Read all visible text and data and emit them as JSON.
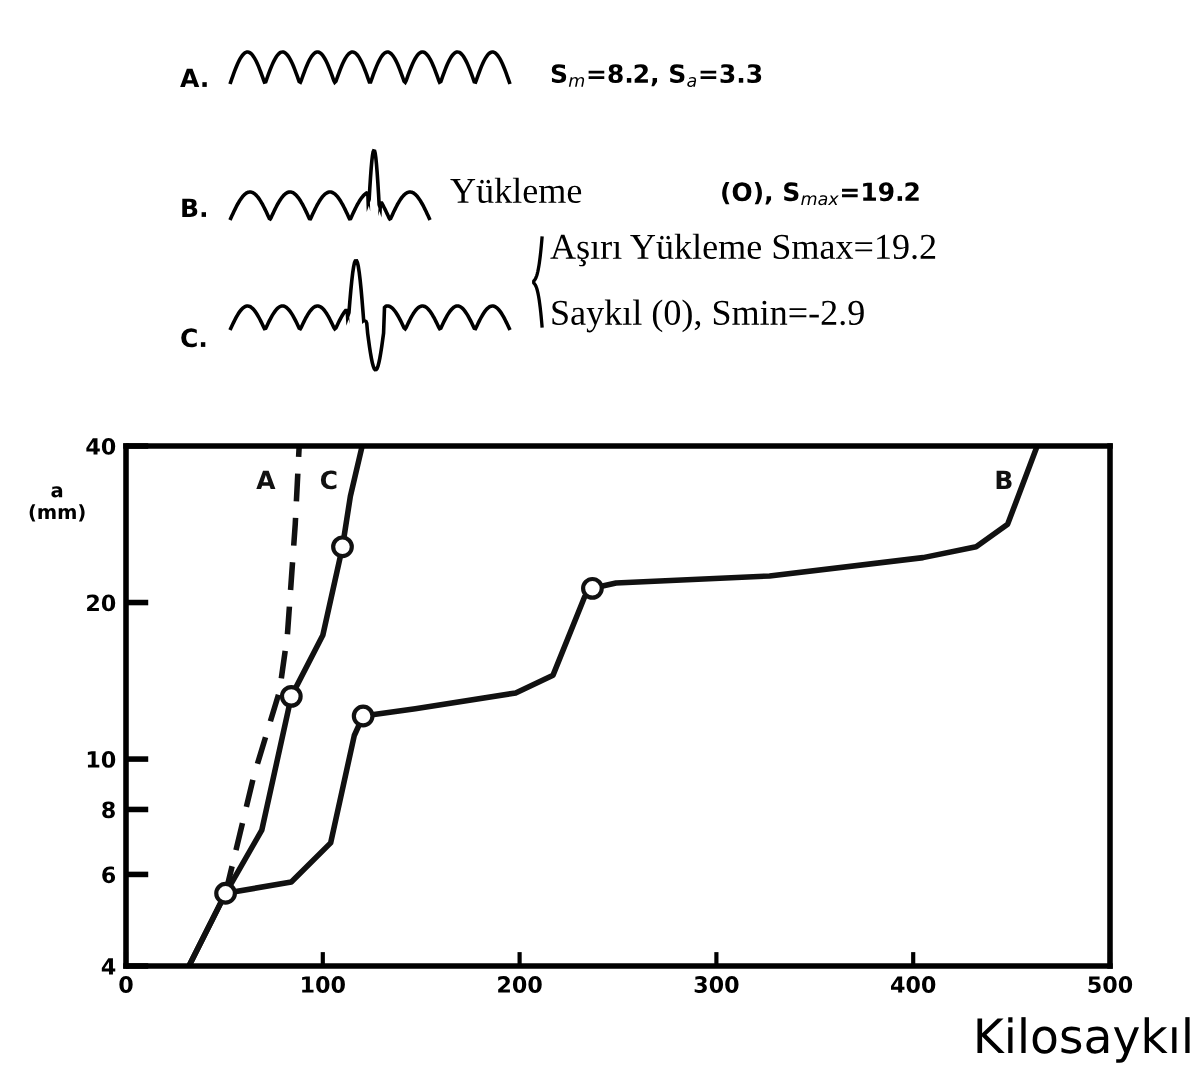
{
  "chart_data": {
    "type": "line",
    "xlabel": "Kilosaykıl",
    "ylabel": "a\n(mm)",
    "x": [
      32,
      50.6,
      84,
      104,
      116,
      120.5,
      147,
      198,
      217,
      233,
      237,
      249,
      327,
      405,
      432,
      448,
      463
    ],
    "series": [
      {
        "name": "B",
        "color": "#111111",
        "line_style": "solid",
        "values": [
          4,
          5.52,
          5.8,
          6.9,
          11.1,
          12.1,
          12.5,
          13.4,
          14.5,
          20.5,
          21.3,
          21.8,
          22.5,
          24.4,
          25.6,
          28.3,
          40
        ]
      },
      {
        "name": "C",
        "color": "#111111",
        "line_style": "solid",
        "x": [
          32,
          50.6,
          69,
          84,
          100,
          110,
          114,
          120
        ],
        "values": [
          4,
          5.52,
          7.3,
          13.2,
          17.3,
          25.6,
          32,
          40
        ]
      },
      {
        "name": "A",
        "color": "#111111",
        "line_style": "dashed",
        "x": [
          50.6,
          65,
          78,
          82,
          86,
          88
        ],
        "values": [
          5.52,
          9.3,
          13.5,
          17.3,
          28.3,
          40
        ]
      },
      {
        "type": "scatter",
        "marker": "circle",
        "color": "#111111",
        "x": [
          50.6,
          84,
          110,
          120.5,
          237
        ],
        "values": [
          5.52,
          13.2,
          25.6,
          12.1,
          21.3
        ]
      }
    ],
    "log": "y",
    "xlim": [
      0,
      500
    ],
    "ylim": [
      4,
      40
    ],
    "xticks": [
      0,
      100,
      200,
      300,
      400,
      500
    ],
    "yticks": [
      4,
      6,
      8,
      10,
      20,
      40
    ],
    "grid": false,
    "annotations": [
      "A.",
      "S$_{m}$=8.2, S$_{a}$=3.3",
      "B.",
      "Yükleme",
      "(O), S$_{max}$=19.2",
      "C.",
      "Aşırı Yükleme Smax=19.2",
      "Saykıl (0), Smin=-2.9"
    ]
  }
}
